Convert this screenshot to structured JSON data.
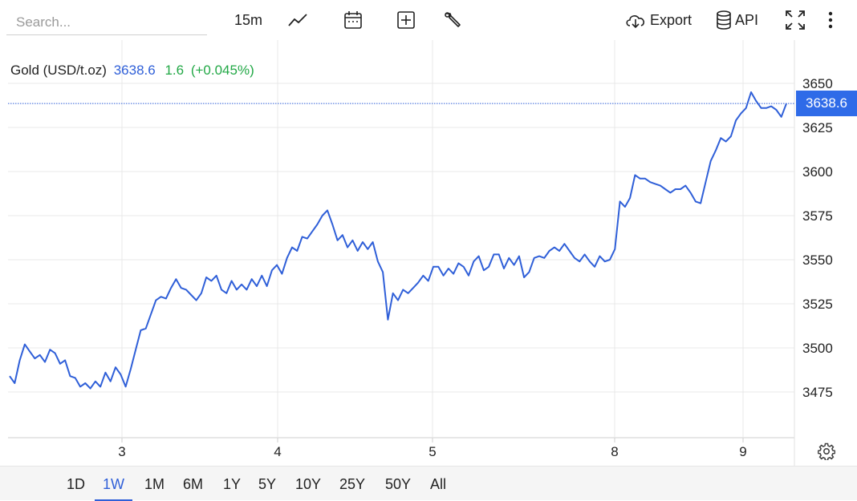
{
  "toolbar": {
    "search_placeholder": "Search...",
    "interval": "15m",
    "export_label": "Export",
    "api_label": "API",
    "icons": [
      "chart-type-icon",
      "calendar-icon",
      "add-indicator-icon",
      "wrench-icon",
      "cloud-download-icon",
      "database-icon",
      "fullscreen-icon",
      "more-vertical-icon"
    ]
  },
  "legend": {
    "instrument": "Gold (USD/t.oz)",
    "price": "3638.6",
    "change": "1.6",
    "change_pct": "(+0.045%)"
  },
  "price_tag": "3638.6",
  "ranges": {
    "items": [
      "1D",
      "1W",
      "1M",
      "6M",
      "1Y",
      "5Y",
      "10Y",
      "25Y",
      "50Y",
      "All"
    ],
    "active": "1W"
  },
  "colors": {
    "line": "#2f5fd8",
    "tag_bg": "#2f6be8",
    "positive": "#22a846",
    "grid": "#e8e8e8"
  },
  "chart_data": {
    "type": "line",
    "title": "Gold (USD/t.oz)",
    "xlabel": "",
    "ylabel": "",
    "ylim": [
      3450,
      3665
    ],
    "y_ticks": [
      3475,
      3500,
      3525,
      3550,
      3575,
      3600,
      3625,
      3650
    ],
    "x_ticks": [
      "3",
      "4",
      "5",
      "8",
      "9"
    ],
    "grid": true,
    "last_value": 3638.6,
    "series": [
      {
        "name": "Gold (USD/t.oz)",
        "values": [
          3484,
          3480,
          3493,
          3502,
          3498,
          3494,
          3496,
          3492,
          3499,
          3497,
          3491,
          3493,
          3484,
          3483,
          3478,
          3480,
          3477,
          3481,
          3478,
          3486,
          3481,
          3489,
          3485,
          3478,
          3488,
          3499,
          3510,
          3511,
          3519,
          3527,
          3529,
          3528,
          3534,
          3539,
          3534,
          3533,
          3530,
          3527,
          3531,
          3540,
          3538,
          3541,
          3533,
          3531,
          3538,
          3533,
          3536,
          3533,
          3539,
          3535,
          3541,
          3535,
          3544,
          3547,
          3542,
          3551,
          3557,
          3555,
          3563,
          3562,
          3566,
          3570,
          3575,
          3578,
          3570,
          3561,
          3564,
          3557,
          3561,
          3555,
          3560,
          3556,
          3560,
          3549,
          3543,
          3516,
          3531,
          3527,
          3533,
          3531,
          3534,
          3537,
          3541,
          3538,
          3546,
          3546,
          3541,
          3545,
          3542,
          3548,
          3546,
          3541,
          3549,
          3552,
          3544,
          3546,
          3553,
          3553,
          3545,
          3551,
          3547,
          3552,
          3540,
          3543,
          3551,
          3552,
          3551,
          3555,
          3557,
          3555,
          3559,
          3555,
          3551,
          3549,
          3553,
          3549,
          3546,
          3552,
          3549,
          3550,
          3556,
          3583,
          3580,
          3585,
          3598,
          3596,
          3596,
          3594,
          3593,
          3592,
          3590,
          3588,
          3590,
          3590,
          3592,
          3588,
          3583,
          3582,
          3594,
          3606,
          3612,
          3619,
          3617,
          3620,
          3629,
          3633,
          3636,
          3645,
          3640,
          3636,
          3636,
          3637,
          3635,
          3631,
          3638.6
        ]
      }
    ]
  }
}
